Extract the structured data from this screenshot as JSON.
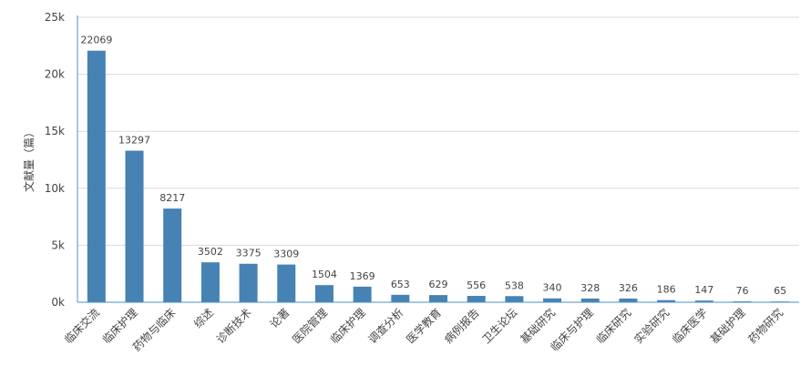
{
  "chart_data": {
    "type": "bar",
    "ylabel": "文献量（篇）",
    "ylim": [
      0,
      25000
    ],
    "yticks": [
      0,
      5000,
      10000,
      15000,
      20000,
      25000
    ],
    "ytick_labels": [
      "0k",
      "5k",
      "10k",
      "15k",
      "20k",
      "25k"
    ],
    "grid": "horizontal",
    "categories": [
      "临床交流",
      "临床护理",
      "药物与临床",
      "综述",
      "诊断技术",
      "论著",
      "医院管理",
      "临床护理",
      "调查分析",
      "医学教育",
      "病例报告",
      "卫生论坛",
      "基础研究",
      "临床与护理",
      "临床研究",
      "实验研究",
      "临床医学",
      "基础护理",
      "药物研究"
    ],
    "values": [
      22069,
      13297,
      8217,
      3502,
      3375,
      3309,
      1504,
      1369,
      653,
      629,
      556,
      538,
      340,
      328,
      326,
      186,
      147,
      76,
      65
    ],
    "colors": {
      "bar": "#4682b4",
      "grid": "#d9d9d9",
      "axis": "#4a90c8",
      "text": "#444444"
    }
  }
}
